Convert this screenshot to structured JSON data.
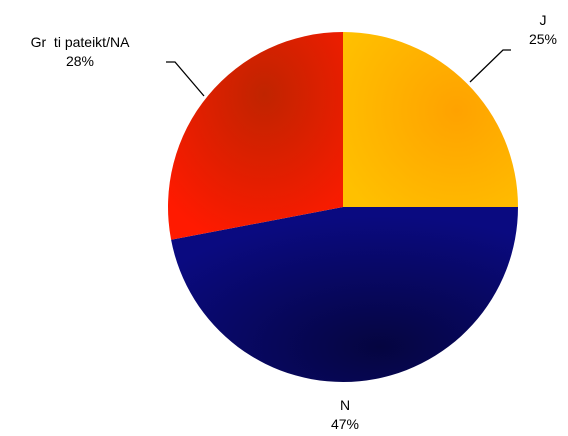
{
  "chart_data": {
    "type": "pie",
    "slices": [
      {
        "label": "J",
        "value": 25,
        "value_label": "25%",
        "color": "#ffc000",
        "shade": "#ffa200"
      },
      {
        "label": "N",
        "value": 47,
        "value_label": "47%",
        "color": "#0a0a80",
        "shade": "#050540"
      },
      {
        "label": "Grūti pateikt/NA",
        "label_display": "Gr  ti pateikt/NA",
        "value": 28,
        "value_label": "28%",
        "color": "#ff1a00",
        "shade": "#c02400"
      }
    ],
    "start_angle_deg": 0,
    "direction": "clockwise",
    "legend": "none"
  }
}
